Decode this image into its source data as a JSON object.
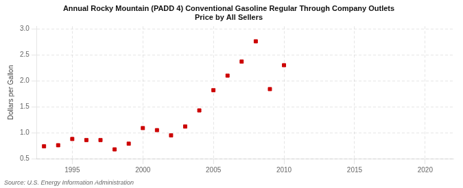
{
  "chart_data": {
    "type": "scatter",
    "title": "Annual Rocky Mountain (PADD 4) Conventional Gasoline Regular Through Company Outlets\nPrice by All Sellers",
    "ylabel": "Dollars per Gallon",
    "source": "Source: U.S. Energy Information Administration",
    "x": [
      1993,
      1994,
      1995,
      1996,
      1997,
      1998,
      1999,
      2000,
      2001,
      2002,
      2003,
      2004,
      2005,
      2006,
      2007,
      2008,
      2009,
      2010
    ],
    "values": [
      0.74,
      0.76,
      0.88,
      0.86,
      0.86,
      0.68,
      0.79,
      1.09,
      1.05,
      0.95,
      1.12,
      1.43,
      1.82,
      2.1,
      2.37,
      2.76,
      1.84,
      2.3
    ],
    "color": "#cc0000",
    "marker": "square",
    "xlim": [
      1992.5,
      2022
    ],
    "xticks": [
      1995,
      2000,
      2005,
      2010,
      2015,
      2020
    ],
    "ylim": [
      0.5,
      3.05
    ],
    "yticks": [
      0.5,
      {
        "value": 1.0,
        "label": "1.0"
      },
      1.5,
      {
        "value": 2.0,
        "label": "2.0"
      },
      2.5,
      {
        "value": 3.0,
        "label": "3.0"
      }
    ],
    "grid": true
  }
}
